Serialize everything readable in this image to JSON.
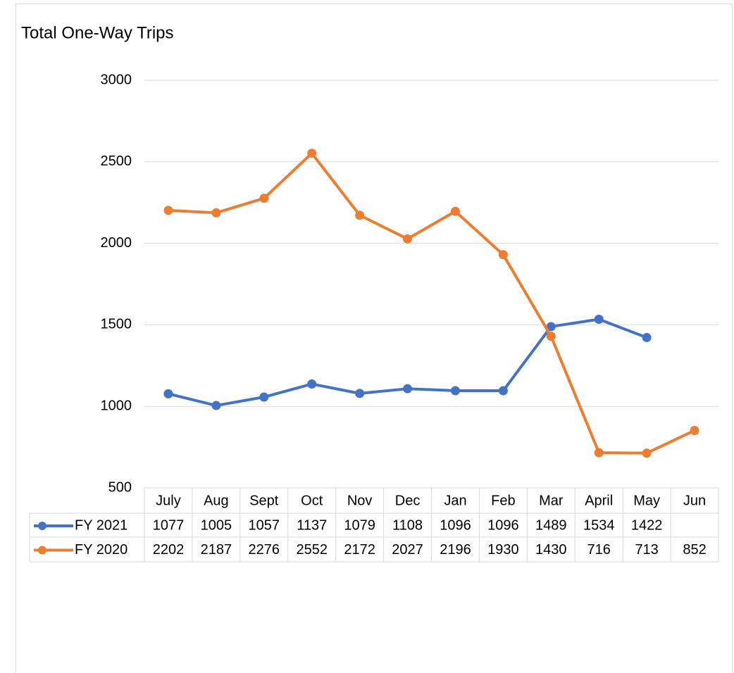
{
  "chart_data": {
    "type": "line",
    "title": "Total One-Way Trips",
    "categories": [
      "July",
      "Aug",
      "Sept",
      "Oct",
      "Nov",
      "Dec",
      "Jan",
      "Feb",
      "Mar",
      "April",
      "May",
      "Jun"
    ],
    "series": [
      {
        "name": "FY 2021",
        "color": "#4472c4",
        "values": [
          1077,
          1005,
          1057,
          1137,
          1079,
          1108,
          1096,
          1096,
          1489,
          1534,
          1422,
          null
        ]
      },
      {
        "name": "FY 2020",
        "color": "#ed7d31",
        "values": [
          2202,
          2187,
          2276,
          2552,
          2172,
          2027,
          2196,
          1930,
          1430,
          716,
          713,
          852
        ]
      }
    ],
    "ylim": [
      500,
      3000
    ],
    "yticks": [
      500,
      1000,
      1500,
      2000,
      2500,
      3000
    ],
    "grid": true
  }
}
